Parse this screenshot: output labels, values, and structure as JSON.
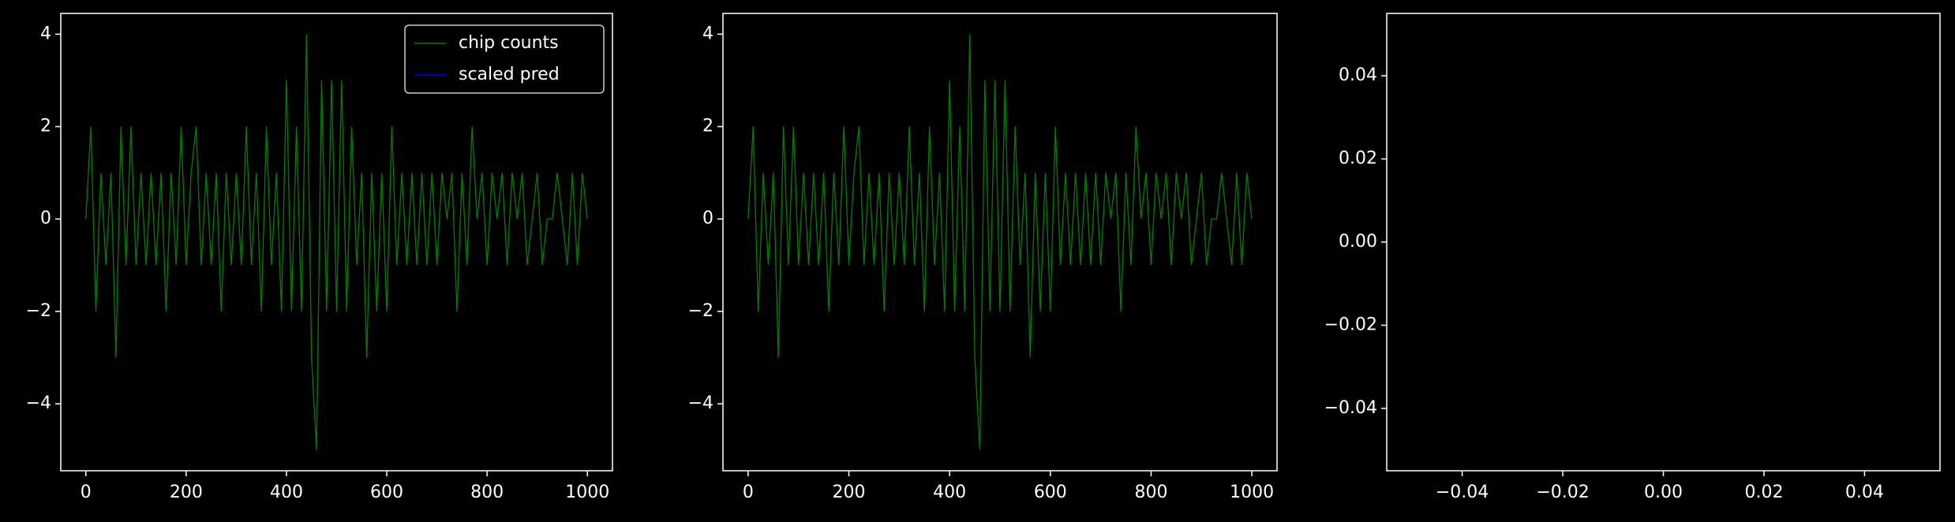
{
  "chart_data": [
    {
      "type": "line",
      "xlim": [
        -50,
        1050
      ],
      "ylim": [
        -5.45,
        4.45
      ],
      "xticks": [
        0,
        200,
        400,
        600,
        800,
        1000
      ],
      "yticks": [
        {
          "value": -4,
          "label": "−4"
        },
        {
          "value": -2,
          "label": "−2"
        },
        0,
        2,
        4
      ],
      "legend": "upper right",
      "series": [
        {
          "name": "chip counts",
          "color": "#008000",
          "x": [
            0,
            10,
            20,
            30,
            40,
            50,
            60,
            70,
            80,
            90,
            100,
            110,
            120,
            130,
            140,
            150,
            160,
            170,
            180,
            190,
            200,
            210,
            220,
            230,
            240,
            250,
            260,
            270,
            280,
            290,
            300,
            310,
            320,
            330,
            340,
            350,
            360,
            370,
            380,
            390,
            400,
            410,
            420,
            430,
            440,
            450,
            460,
            470,
            480,
            490,
            500,
            510,
            520,
            530,
            540,
            550,
            560,
            570,
            580,
            590,
            600,
            610,
            620,
            630,
            640,
            650,
            660,
            670,
            680,
            690,
            700,
            710,
            720,
            730,
            740,
            750,
            760,
            770,
            780,
            790,
            800,
            810,
            820,
            830,
            840,
            850,
            860,
            870,
            880,
            890,
            900,
            910,
            920,
            930,
            940,
            950,
            960,
            970,
            980,
            990,
            1000
          ],
          "values": [
            0,
            2,
            -2,
            1,
            -1,
            1,
            -3,
            2,
            -1,
            2,
            -1,
            1,
            -1,
            1,
            -1,
            1,
            -2,
            1,
            -1,
            2,
            -1,
            1,
            2,
            -1,
            1,
            -1,
            1,
            -2,
            1,
            -1,
            1,
            -1,
            2,
            -1,
            1,
            -2,
            2,
            -1,
            1,
            -2,
            3,
            -2,
            2,
            -2,
            4,
            -3,
            -5,
            3,
            -2,
            3,
            -2,
            3,
            -2,
            2,
            -1,
            1,
            -3,
            1,
            -2,
            1,
            -2,
            2,
            -1,
            1,
            -1,
            1,
            -1,
            1,
            -1,
            1,
            -1,
            1,
            0,
            1,
            -2,
            1,
            -1,
            2,
            0,
            1,
            -1,
            1,
            0,
            1,
            -1,
            1,
            0,
            1,
            -1,
            0,
            1,
            -1,
            0,
            0,
            1,
            0,
            -1,
            1,
            -1,
            1,
            0
          ]
        },
        {
          "name": "scaled pred",
          "color": "#0000ff",
          "x": [],
          "values": []
        }
      ]
    },
    {
      "type": "line",
      "xlim": [
        -50,
        1050
      ],
      "ylim": [
        -5.45,
        4.45
      ],
      "xticks": [
        0,
        200,
        400,
        600,
        800,
        1000
      ],
      "yticks": [
        {
          "value": -4,
          "label": "−4"
        },
        {
          "value": -2,
          "label": "−2"
        },
        0,
        2,
        4
      ],
      "series": [
        {
          "color": "#008000",
          "x": [
            0,
            10,
            20,
            30,
            40,
            50,
            60,
            70,
            80,
            90,
            100,
            110,
            120,
            130,
            140,
            150,
            160,
            170,
            180,
            190,
            200,
            210,
            220,
            230,
            240,
            250,
            260,
            270,
            280,
            290,
            300,
            310,
            320,
            330,
            340,
            350,
            360,
            370,
            380,
            390,
            400,
            410,
            420,
            430,
            440,
            450,
            460,
            470,
            480,
            490,
            500,
            510,
            520,
            530,
            540,
            550,
            560,
            570,
            580,
            590,
            600,
            610,
            620,
            630,
            640,
            650,
            660,
            670,
            680,
            690,
            700,
            710,
            720,
            730,
            740,
            750,
            760,
            770,
            780,
            790,
            800,
            810,
            820,
            830,
            840,
            850,
            860,
            870,
            880,
            890,
            900,
            910,
            920,
            930,
            940,
            950,
            960,
            970,
            980,
            990,
            1000
          ],
          "values": [
            0,
            2,
            -2,
            1,
            -1,
            1,
            -3,
            2,
            -1,
            2,
            -1,
            1,
            -1,
            1,
            -1,
            1,
            -2,
            1,
            -1,
            2,
            -1,
            1,
            2,
            -1,
            1,
            -1,
            1,
            -2,
            1,
            -1,
            1,
            -1,
            2,
            -1,
            1,
            -2,
            2,
            -1,
            1,
            -2,
            3,
            -2,
            2,
            -2,
            4,
            -3,
            -5,
            3,
            -2,
            3,
            -2,
            3,
            -2,
            2,
            -1,
            1,
            -3,
            1,
            -2,
            1,
            -2,
            2,
            -1,
            1,
            -1,
            1,
            -1,
            1,
            -1,
            1,
            -1,
            1,
            0,
            1,
            -2,
            1,
            -1,
            2,
            0,
            1,
            -1,
            1,
            0,
            1,
            -1,
            1,
            0,
            1,
            -1,
            0,
            1,
            -1,
            0,
            0,
            1,
            0,
            -1,
            1,
            -1,
            1,
            0
          ]
        }
      ]
    },
    {
      "type": "line",
      "xlim": [
        -0.055,
        0.055
      ],
      "ylim": [
        -0.055,
        0.055
      ],
      "xticks": [
        {
          "value": -0.04,
          "label": "−0.04"
        },
        {
          "value": -0.02,
          "label": "−0.02"
        },
        {
          "value": 0,
          "label": "0.00"
        },
        {
          "value": 0.02,
          "label": "0.02"
        },
        {
          "value": 0.04,
          "label": "0.04"
        }
      ],
      "yticks": [
        {
          "value": -0.04,
          "label": "−0.04"
        },
        {
          "value": -0.02,
          "label": "−0.02"
        },
        {
          "value": 0,
          "label": "0.00"
        },
        {
          "value": 0.02,
          "label": "0.02"
        },
        {
          "value": 0.04,
          "label": "0.04"
        }
      ],
      "series": []
    }
  ]
}
